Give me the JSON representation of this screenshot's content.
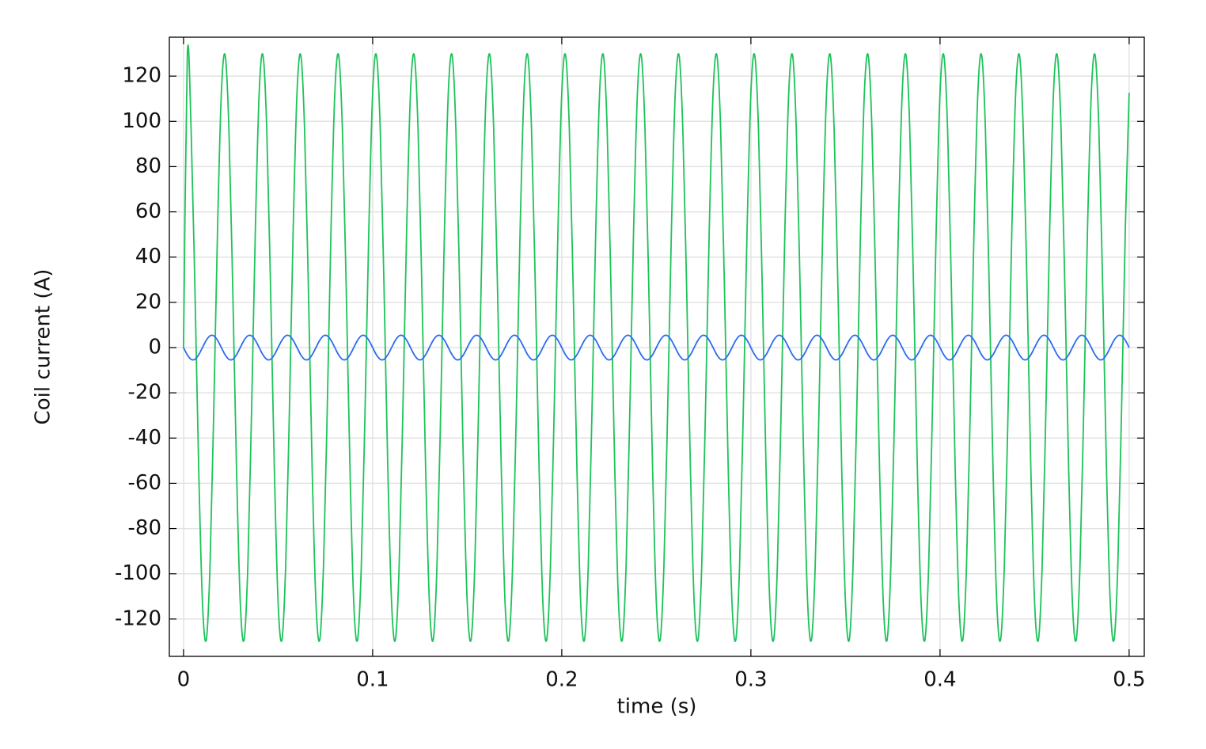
{
  "chart_data": {
    "type": "line",
    "xlabel": "time (s)",
    "ylabel": "Coil current (A)",
    "xlim": [
      -0.0075,
      0.508
    ],
    "ylim": [
      -136.5,
      137.2
    ],
    "xticks": [
      0,
      0.1,
      0.2,
      0.3,
      0.4,
      0.5
    ],
    "yticks": [
      -120,
      -100,
      -80,
      -60,
      -40,
      -20,
      0,
      20,
      40,
      60,
      80,
      100,
      120
    ],
    "grid": true,
    "x": [
      0,
      0.002,
      0.004,
      0.006,
      0.008,
      0.01,
      0.012,
      0.014,
      0.016,
      0.018,
      0.02,
      0.022,
      0.024,
      0.026,
      0.028,
      0.03,
      0.032,
      0.034,
      0.036,
      0.038,
      0.04,
      0.042,
      0.044,
      0.046,
      0.048,
      0.05,
      0.052,
      0.054,
      0.056,
      0.058,
      0.06,
      0.062,
      0.064,
      0.066,
      0.068,
      0.07,
      0.072,
      0.074,
      0.076,
      0.078,
      0.08,
      0.082,
      0.084,
      0.086,
      0.088,
      0.09,
      0.092,
      0.094,
      0.096,
      0.098,
      0.1,
      0.102,
      0.104,
      0.106,
      0.108,
      0.11,
      0.112,
      0.114,
      0.116,
      0.118,
      0.12,
      0.122,
      0.124,
      0.126,
      0.128,
      0.13,
      0.132,
      0.134,
      0.136,
      0.138,
      0.14,
      0.142,
      0.144,
      0.146,
      0.148,
      0.15,
      0.152,
      0.154,
      0.156,
      0.158,
      0.16,
      0.162,
      0.164,
      0.166,
      0.168,
      0.17,
      0.172,
      0.174,
      0.176,
      0.178,
      0.18,
      0.182,
      0.184,
      0.186,
      0.188,
      0.19,
      0.192,
      0.194,
      0.196,
      0.198,
      0.2,
      0.202,
      0.204,
      0.206,
      0.208,
      0.21,
      0.212,
      0.214,
      0.216,
      0.218,
      0.22,
      0.222,
      0.224,
      0.226,
      0.228,
      0.23,
      0.232,
      0.234,
      0.236,
      0.238,
      0.24,
      0.242,
      0.244,
      0.246,
      0.248,
      0.25,
      0.252,
      0.254,
      0.256,
      0.258,
      0.26,
      0.262,
      0.264,
      0.266,
      0.268,
      0.27,
      0.272,
      0.274,
      0.276,
      0.278,
      0.28,
      0.282,
      0.284,
      0.286,
      0.288,
      0.29,
      0.292,
      0.294,
      0.296,
      0.298,
      0.3,
      0.302,
      0.304,
      0.306,
      0.308,
      0.31,
      0.312,
      0.314,
      0.316,
      0.318,
      0.32,
      0.322,
      0.324,
      0.326,
      0.328,
      0.33,
      0.332,
      0.334,
      0.336,
      0.338,
      0.34,
      0.342,
      0.344,
      0.346,
      0.348,
      0.35,
      0.352,
      0.354,
      0.356,
      0.358,
      0.36,
      0.362,
      0.364,
      0.366,
      0.368,
      0.37,
      0.372,
      0.374,
      0.376,
      0.378,
      0.38,
      0.382,
      0.384,
      0.386,
      0.388,
      0.39,
      0.392,
      0.394,
      0.396,
      0.398,
      0.4,
      0.402,
      0.404,
      0.406,
      0.408,
      0.41,
      0.412,
      0.414,
      0.416,
      0.418,
      0.42,
      0.422,
      0.424,
      0.426,
      0.428,
      0.43,
      0.432,
      0.434,
      0.436,
      0.438,
      0.44,
      0.442,
      0.444,
      0.446,
      0.448,
      0.45,
      0.452,
      0.454,
      0.456,
      0.458,
      0.46,
      0.462,
      0.464,
      0.466,
      0.468,
      0.47,
      0.472,
      0.474,
      0.476,
      0.478,
      0.48,
      0.482,
      0.484,
      0.486,
      0.488,
      0.49,
      0.492,
      0.494,
      0.496,
      0.498,
      0.5
    ],
    "series": [
      {
        "color": "#1dc35a",
        "values": [
          0,
          129.3,
          96.6,
          27,
          -52.9,
          -112.6,
          -129.3,
          -96.6,
          -27,
          52.9,
          112.6,
          129.3,
          96.6,
          27,
          -52.9,
          -112.6,
          -129.3,
          -96.6,
          -27,
          52.9,
          112.6,
          129.3,
          96.6,
          27,
          -52.9,
          -112.6,
          -129.3,
          -96.6,
          -27,
          52.9,
          112.6,
          129.3,
          96.6,
          27,
          -52.9,
          -112.6,
          -129.3,
          -96.6,
          -27,
          52.9,
          112.6,
          129.3,
          96.6,
          27,
          -52.9,
          -112.6,
          -129.3,
          -96.6,
          -27,
          52.9,
          112.6,
          129.3,
          96.6,
          27,
          -52.9,
          -112.6,
          -129.3,
          -96.6,
          -27,
          52.9,
          112.6,
          129.3,
          96.6,
          27,
          -52.9,
          -112.6,
          -129.3,
          -96.6,
          -27,
          52.9,
          112.6,
          129.3,
          96.6,
          27,
          -52.9,
          -112.6,
          -129.3,
          -96.6,
          -27,
          52.9,
          112.6,
          129.3,
          96.6,
          27,
          -52.9,
          -112.6,
          -129.3,
          -96.6,
          -27,
          52.9,
          112.6,
          129.3,
          96.6,
          27,
          -52.9,
          -112.6,
          -129.3,
          -96.6,
          -27,
          52.9,
          112.6,
          129.3,
          96.6,
          27,
          -52.9,
          -112.6,
          -129.3,
          -96.6,
          -27,
          52.9,
          112.6,
          129.3,
          96.6,
          27,
          -52.9,
          -112.6,
          -129.3,
          -96.6,
          -27,
          52.9,
          112.6,
          129.3,
          96.6,
          27,
          -52.9,
          -112.6,
          -129.3,
          -96.6,
          -27,
          52.9,
          112.6,
          129.3,
          96.6,
          27,
          -52.9,
          -112.6,
          -129.3,
          -96.6,
          -27,
          52.9,
          112.6,
          129.3,
          96.6,
          27,
          -52.9,
          -112.6,
          -129.3,
          -96.6,
          -27,
          52.9,
          112.6,
          129.3,
          96.6,
          27,
          -52.9,
          -112.6,
          -129.3,
          -96.6,
          -27,
          52.9,
          112.6,
          129.3,
          96.6,
          27,
          -52.9,
          -112.6,
          -129.3,
          -96.6,
          -27,
          52.9,
          112.6,
          129.3,
          96.6,
          27,
          -52.9,
          -112.6,
          -129.3,
          -96.6,
          -27,
          52.9,
          112.6,
          129.3,
          96.6,
          27,
          -52.9,
          -112.6,
          -129.3,
          -96.6,
          -27,
          52.9,
          112.6,
          129.3,
          96.6,
          27,
          -52.9,
          -112.6,
          -129.3,
          -96.6,
          -27,
          52.9,
          112.6,
          129.3,
          96.6,
          27,
          -52.9,
          -112.6,
          -129.3,
          -96.6,
          -27,
          52.9,
          112.6,
          129.3,
          96.6,
          27,
          -52.9,
          -112.6,
          -129.3,
          -96.6,
          -27,
          52.9,
          112.6,
          129.3,
          96.6,
          27,
          -52.9,
          -112.6,
          -129.3,
          -96.6,
          -27,
          52.9,
          112.6,
          129.3,
          96.6,
          27,
          -52.9,
          -112.6,
          -129.3,
          -96.6,
          -27,
          52.9,
          112.6,
          129.3,
          96.6,
          27,
          -52.9,
          -112.6,
          -129.3,
          -96.6,
          -27,
          52.9,
          112.6
        ]
      },
      {
        "color": "#2b6cf2",
        "values": [
          0,
          -3.2,
          -5.2,
          -5.2,
          -3.2,
          0,
          3.2,
          5.2,
          5.2,
          3.2,
          0,
          -3.2,
          -5.2,
          -5.2,
          -3.2,
          0,
          3.2,
          5.2,
          5.2,
          3.2,
          0,
          -3.2,
          -5.2,
          -5.2,
          -3.2,
          0,
          3.2,
          5.2,
          5.2,
          3.2,
          0,
          -3.2,
          -5.2,
          -5.2,
          -3.2,
          0,
          3.2,
          5.2,
          5.2,
          3.2,
          0,
          -3.2,
          -5.2,
          -5.2,
          -3.2,
          0,
          3.2,
          5.2,
          5.2,
          3.2,
          0,
          -3.2,
          -5.2,
          -5.2,
          -3.2,
          0,
          3.2,
          5.2,
          5.2,
          3.2,
          0,
          -3.2,
          -5.2,
          -5.2,
          -3.2,
          0,
          3.2,
          5.2,
          5.2,
          3.2,
          0,
          -3.2,
          -5.2,
          -5.2,
          -3.2,
          0,
          3.2,
          5.2,
          5.2,
          3.2,
          0,
          -3.2,
          -5.2,
          -5.2,
          -3.2,
          0,
          3.2,
          5.2,
          5.2,
          3.2,
          0,
          -3.2,
          -5.2,
          -5.2,
          -3.2,
          0,
          3.2,
          5.2,
          5.2,
          3.2,
          0,
          -3.2,
          -5.2,
          -5.2,
          -3.2,
          0,
          3.2,
          5.2,
          5.2,
          3.2,
          0,
          -3.2,
          -5.2,
          -5.2,
          -3.2,
          0,
          3.2,
          5.2,
          5.2,
          3.2,
          0,
          -3.2,
          -5.2,
          -5.2,
          -3.2,
          0,
          3.2,
          5.2,
          5.2,
          3.2,
          0,
          -3.2,
          -5.2,
          -5.2,
          -3.2,
          0,
          3.2,
          5.2,
          5.2,
          3.2,
          0,
          -3.2,
          -5.2,
          -5.2,
          -3.2,
          0,
          3.2,
          5.2,
          5.2,
          3.2,
          0,
          -3.2,
          -5.2,
          -5.2,
          -3.2,
          0,
          3.2,
          5.2,
          5.2,
          3.2,
          0,
          -3.2,
          -5.2,
          -5.2,
          -3.2,
          0,
          3.2,
          5.2,
          5.2,
          3.2,
          0,
          -3.2,
          -5.2,
          -5.2,
          -3.2,
          0,
          3.2,
          5.2,
          5.2,
          3.2,
          0,
          -3.2,
          -5.2,
          -5.2,
          -3.2,
          0,
          3.2,
          5.2,
          5.2,
          3.2,
          0,
          -3.2,
          -5.2,
          -5.2,
          -3.2,
          0,
          3.2,
          5.2,
          5.2,
          3.2,
          0,
          -3.2,
          -5.2,
          -5.2,
          -3.2,
          0,
          3.2,
          5.2,
          5.2,
          3.2,
          0,
          -3.2,
          -5.2,
          -5.2,
          -3.2,
          0,
          3.2,
          5.2,
          5.2,
          3.2,
          0,
          -3.2,
          -5.2,
          -5.2,
          -3.2,
          0,
          3.2,
          5.2,
          5.2,
          3.2,
          0,
          -3.2,
          -5.2,
          -5.2,
          -3.2,
          0,
          3.2,
          5.2,
          5.2,
          3.2,
          0,
          -3.2,
          -5.2,
          -5.2,
          -3.2,
          0,
          3.2,
          5.2,
          5.2,
          3.2,
          0
        ]
      }
    ]
  }
}
